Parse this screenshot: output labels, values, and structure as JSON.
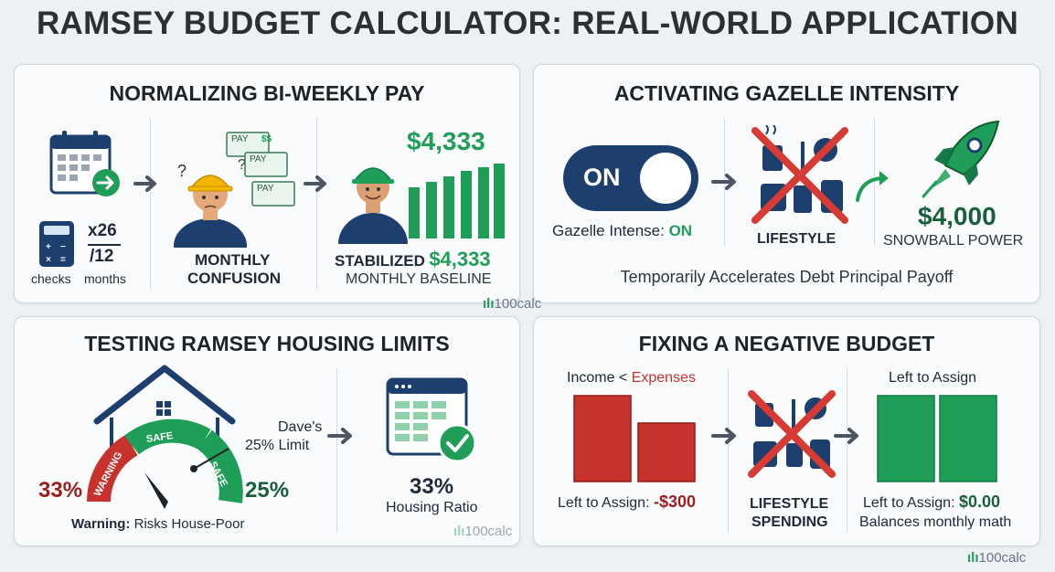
{
  "title": "RAMSEY BUDGET CALCULATOR: REAL-WORLD APPLICATION",
  "watermark": "100calc",
  "p1": {
    "title": "NORMALIZING BI-WEEKLY PAY",
    "x26": "x26",
    "div12": "/12",
    "checks": "checks",
    "months": "months",
    "pay1": "PAY",
    "pay2": "PAY",
    "pay3": "PAY",
    "dollar": "$$",
    "monthly": "MONTHLY",
    "confusion": "CONFUSION",
    "amount": "$4,333",
    "stabilized": "STABILIZED",
    "stab_amount": "$4,333",
    "baseline": "MONTHLY BASELINE"
  },
  "p2": {
    "title": "ACTIVATING GAZELLE INTENSITY",
    "toggle": "ON",
    "gazelle_label": "Gazelle Intense: ",
    "gazelle_value": "ON",
    "lifestyle": "LIFESTYLE",
    "amount": "$4,000",
    "snowball": "SNOWBALL POWER",
    "caption": "Temporarily Accelerates Debt Principal Payoff"
  },
  "p3": {
    "title": "TESTING RAMSEY HOUSING LIMITS",
    "warning_arc": "WARNING",
    "safe1": "SAFE",
    "safe2": "SAFE",
    "pct_left": "33%",
    "pct_right": "25%",
    "limit_line1": "Dave's",
    "limit_line2": "25% Limit",
    "warning_bold": "Warning:",
    "warning_text": " Risks House-Poor",
    "ratio_value": "33%",
    "ratio_label": "Housing Ratio"
  },
  "p4": {
    "title": "FIXING A NEGATIVE BUDGET",
    "income": "Income < ",
    "expenses": "Expenses",
    "left_assign1": "Left to Assign: ",
    "neg": "-$300",
    "lifestyle1": "LIFESTYLE",
    "lifestyle2": "SPENDING",
    "left_header": "Left to Assign",
    "left_assign2": "Left to Assign: ",
    "zero": "$0.00",
    "balances": "Balances monthly math"
  },
  "colors": {
    "navy": "#1d3f6e",
    "green": "#1f9e57",
    "red": "#c8322c",
    "dark_red": "#9b1f1f"
  }
}
